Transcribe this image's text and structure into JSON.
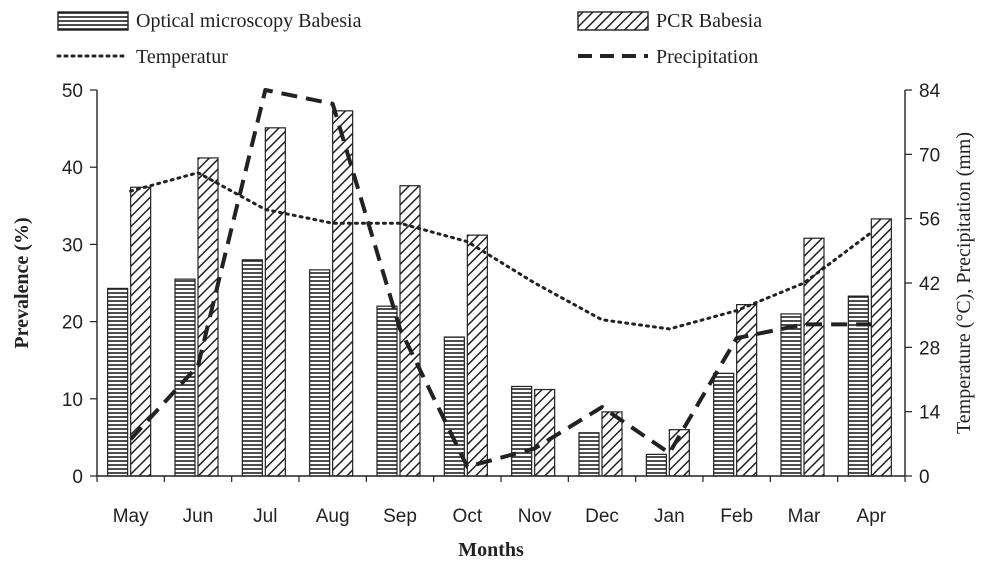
{
  "chart_data": {
    "type": "bar",
    "categories": [
      "May",
      "Jun",
      "Jul",
      "Aug",
      "Sep",
      "Oct",
      "Nov",
      "Dec",
      "Jan",
      "Feb",
      "Mar",
      "Apr"
    ],
    "series": [
      {
        "name": "Optical microscopy Babesia",
        "kind": "bar",
        "pattern": "horizontal-stripes",
        "axis": "left",
        "values": [
          24.3,
          25.5,
          28.0,
          26.7,
          22.0,
          18.0,
          11.6,
          5.6,
          2.8,
          13.3,
          21.0,
          23.3
        ]
      },
      {
        "name": "PCR Babesia",
        "kind": "bar",
        "pattern": "diagonal-hatch",
        "axis": "left",
        "values": [
          37.4,
          41.2,
          45.1,
          47.3,
          37.6,
          31.2,
          11.2,
          8.3,
          6.0,
          22.2,
          30.8,
          33.3
        ]
      },
      {
        "name": "Temperatur",
        "kind": "line",
        "dash": "dotted",
        "axis": "right",
        "values": [
          62,
          66,
          58,
          55,
          55,
          51,
          42,
          34,
          32,
          36,
          42,
          53
        ]
      },
      {
        "name": "Precipitation",
        "kind": "line",
        "dash": "dashed",
        "axis": "right",
        "values": [
          8,
          24,
          84,
          81,
          32,
          2,
          6,
          15,
          5,
          30,
          33,
          33
        ]
      }
    ],
    "xlabel": "Months",
    "ylabel": "Prevalence (%)",
    "y2label": "Temperature (°C), Precipitation (mm)",
    "ylim": [
      0,
      50
    ],
    "yticks": [
      "0",
      "10",
      "20",
      "30",
      "40",
      "50"
    ],
    "y2lim": [
      0,
      84
    ],
    "y2ticks": [
      "0",
      "14",
      "28",
      "42",
      "56",
      "70",
      "84"
    ],
    "legend_position": "top",
    "grid": false
  },
  "colors": {
    "ink": "#222222",
    "bar_fill": "#ffffff"
  }
}
